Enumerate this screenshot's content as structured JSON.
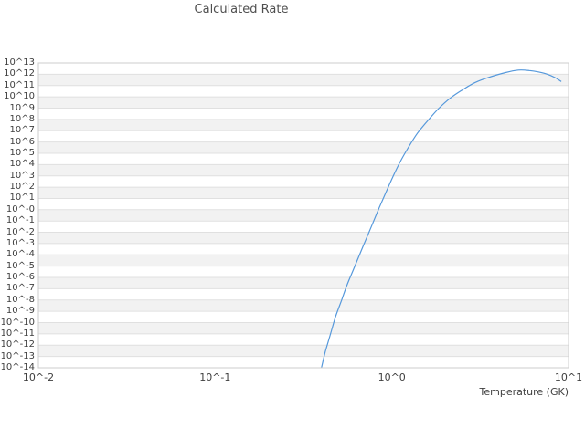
{
  "title": "Calculated Rate",
  "x_axis": {
    "label": "Temperature (GK)",
    "ticks": [
      "10^-2",
      "10^-1",
      "10^0",
      "10^1"
    ]
  },
  "y_axis": {
    "ticks": [
      "10^13",
      "10^12",
      "10^11",
      "10^10",
      "10^9",
      "10^8",
      "10^7",
      "10^6",
      "10^5",
      "10^4",
      "10^3",
      "10^2",
      "10^1",
      "10^-0",
      "10^-1",
      "10^-2",
      "10^-3",
      "10^-4",
      "10^-5",
      "10^-6",
      "10^-7",
      "10^-8",
      "10^-9",
      "10^-10",
      "10^-11",
      "10^-12",
      "10^-13",
      "10^-14"
    ]
  },
  "colors": {
    "curve": "#5598db",
    "band_gray": "#f2f2f2",
    "band_white": "#ffffff",
    "gridline": "#e0e0e0",
    "plot_border": "#cdcdcd",
    "title_text": "#4f4f4f",
    "tick_text": "#3f3f3f"
  },
  "chart_data": {
    "type": "line",
    "title": "Calculated Rate",
    "xlabel": "Temperature (GK)",
    "ylabel": "",
    "x_scale": "log",
    "y_scale": "log",
    "xlim_exp": [
      -2,
      1
    ],
    "ylim_exp": [
      -14,
      13
    ],
    "grid": "horizontal-decade-bands",
    "legend": "none",
    "series": [
      {
        "name": "calculated-rate",
        "color": "#5598db",
        "x": [
          0.4,
          0.42,
          0.45,
          0.48,
          0.52,
          0.56,
          0.61,
          0.66,
          0.72,
          0.78,
          0.85,
          0.93,
          1.02,
          1.12,
          1.25,
          1.4,
          1.6,
          1.85,
          2.15,
          2.5,
          2.95,
          3.5,
          4.4,
          5.2,
          6.0,
          6.8,
          7.6,
          8.4,
          9.1
        ],
        "log10_y": [
          -14.0,
          -12.6,
          -11.0,
          -9.5,
          -8.0,
          -6.6,
          -5.2,
          -3.9,
          -2.5,
          -1.2,
          0.2,
          1.6,
          3.0,
          4.3,
          5.6,
          6.8,
          7.9,
          9.0,
          9.9,
          10.6,
          11.25,
          11.7,
          12.15,
          12.37,
          12.33,
          12.2,
          12.0,
          11.7,
          11.35
        ]
      }
    ]
  }
}
